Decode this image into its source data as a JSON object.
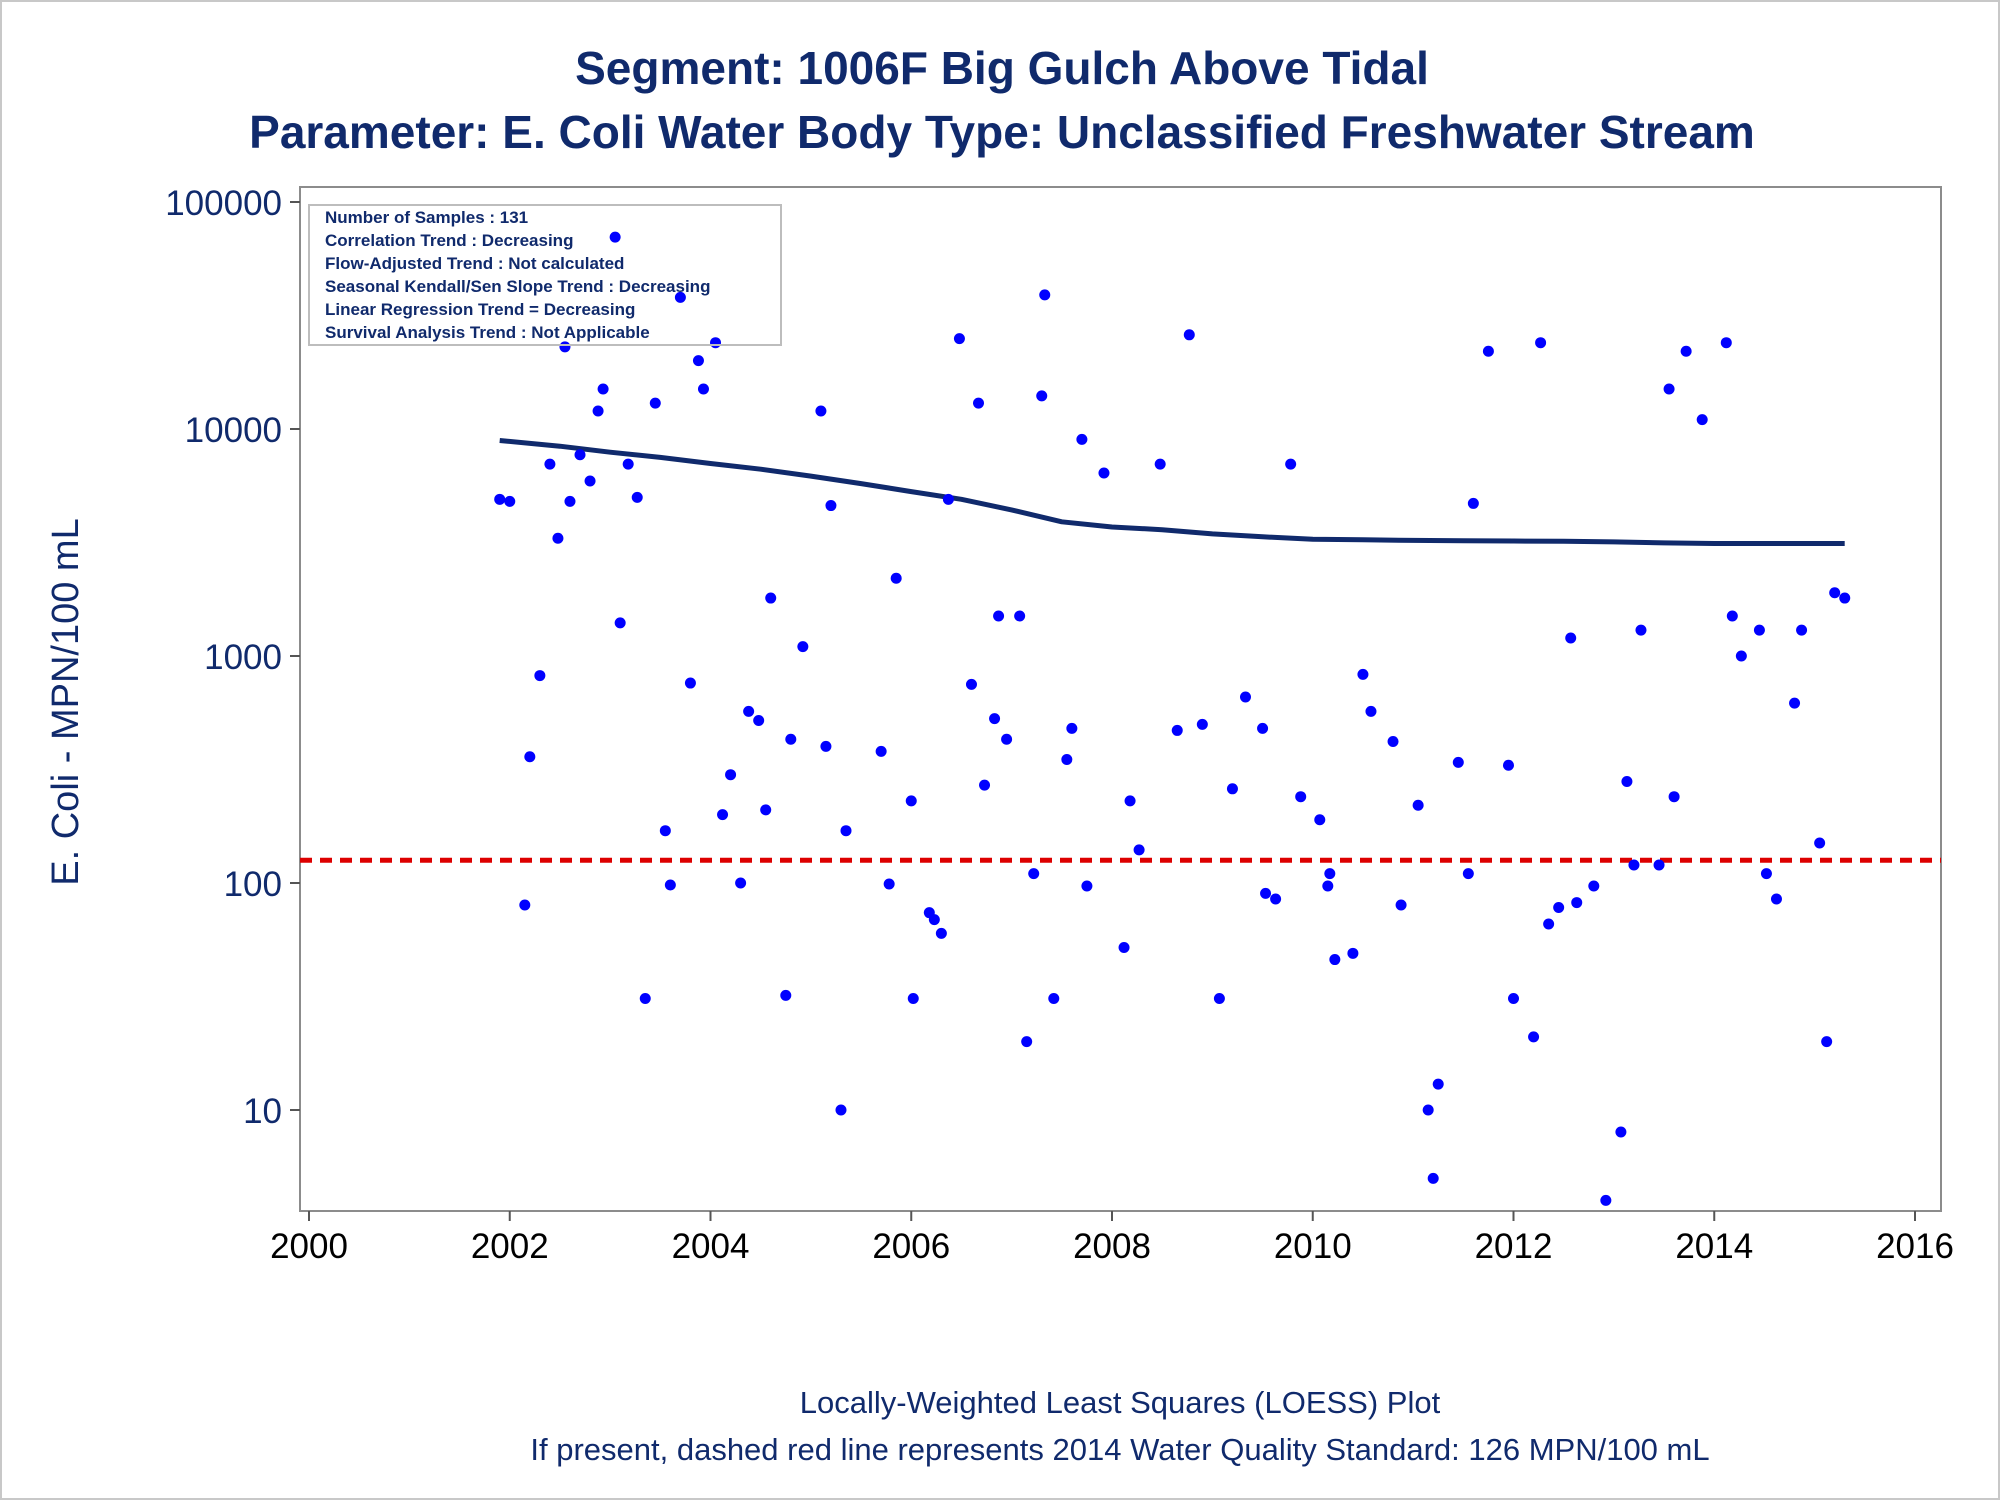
{
  "chart_data": {
    "type": "scatter",
    "title": "Segment: 1006F  Big Gulch Above Tidal",
    "subtitle": "Parameter: E. Coli   Water Body Type: Unclassified Freshwater Stream",
    "xlabel": "",
    "ylabel": "E. Coli - MPN/100 mL",
    "x_scale": "time",
    "y_scale": "log",
    "xlim": [
      2000.0,
      2016.1
    ],
    "ylim": [
      3.6,
      100000
    ],
    "x_ticks": [
      "2000",
      "2002",
      "2004",
      "2006",
      "2008",
      "2010",
      "2012",
      "2014",
      "2016"
    ],
    "y_ticks": [
      "10",
      "100",
      "1000",
      "10000",
      "100000"
    ],
    "grid": false,
    "stats_box": [
      "Number of Samples : 131",
      "Correlation Trend : Decreasing",
      "Flow-Adjusted Trend : Not calculated",
      "Seasonal Kendall/Sen Slope Trend : Decreasing",
      "Linear Regression Trend = Decreasing",
      "Survival Analysis Trend : Not Applicable"
    ],
    "footnotes": [
      "Locally-Weighted Least Squares (LOESS) Plot",
      "If present, dashed red line represents 2014 Water Quality Standard: 126 MPN/100 mL"
    ],
    "standard_value": 126,
    "colors": {
      "points": "#0000ff",
      "loess": "#102a6c",
      "standard": "#dd0000",
      "text": "#102a6c"
    },
    "samples": {
      "x": [
        2001.9,
        2002.0,
        2002.15,
        2002.2,
        2002.3,
        2002.4,
        2002.48,
        2002.55,
        2002.6,
        2002.7,
        2002.8,
        2002.88,
        2002.93,
        2003.05,
        2003.1,
        2003.18,
        2003.27,
        2003.35,
        2003.45,
        2003.55,
        2003.6,
        2003.7,
        2003.8,
        2003.88,
        2003.93,
        2004.05,
        2004.12,
        2004.2,
        2004.3,
        2004.38,
        2004.48,
        2004.55,
        2004.6,
        2004.75,
        2004.8,
        2004.92,
        2005.1,
        2005.15,
        2005.2,
        2005.3,
        2005.35,
        2005.7,
        2005.78,
        2005.85,
        2006.0,
        2006.02,
        2006.18,
        2006.23,
        2006.3,
        2006.37,
        2006.48,
        2006.6,
        2006.67,
        2006.73,
        2006.83,
        2006.87,
        2006.95,
        2007.08,
        2007.15,
        2007.22,
        2007.3,
        2007.33,
        2007.42,
        2007.55,
        2007.6,
        2007.7,
        2007.75,
        2007.92,
        2008.12,
        2008.18,
        2008.27,
        2008.48,
        2008.65,
        2008.77,
        2008.9,
        2009.07,
        2009.2,
        2009.33,
        2009.5,
        2009.53,
        2009.63,
        2009.78,
        2009.88,
        2010.07,
        2010.15,
        2010.17,
        2010.22,
        2010.4,
        2010.5,
        2010.58,
        2010.8,
        2010.88,
        2011.05,
        2011.15,
        2011.2,
        2011.25,
        2011.45,
        2011.55,
        2011.6,
        2011.75,
        2011.95,
        2012.0,
        2012.2,
        2012.27,
        2012.35,
        2012.45,
        2012.57,
        2012.63,
        2012.8,
        2012.92,
        2013.07,
        2013.13,
        2013.2,
        2013.27,
        2013.45,
        2013.55,
        2013.6,
        2013.72,
        2013.88,
        2014.12,
        2014.18,
        2014.27,
        2014.45,
        2014.52,
        2014.62,
        2014.8,
        2014.87,
        2015.05,
        2015.12,
        2015.2,
        2015.3
      ],
      "y": [
        4900,
        4800,
        80,
        360,
        820,
        7000,
        3300,
        23000,
        4800,
        7700,
        5900,
        12000,
        15000,
        70000,
        1400,
        7000,
        5000,
        31,
        13000,
        170,
        98,
        38000,
        760,
        20000,
        15000,
        24000,
        200,
        300,
        100,
        570,
        520,
        210,
        1800,
        32,
        430,
        1100,
        12000,
        400,
        4600,
        10,
        170,
        380,
        99,
        2200,
        230,
        31,
        74,
        69,
        60,
        4900,
        25000,
        750,
        13000,
        270,
        530,
        1500,
        430,
        1500,
        20,
        110,
        14000,
        39000,
        31,
        350,
        480,
        9000,
        97,
        6400,
        52,
        230,
        140,
        7000,
        470,
        26000,
        500,
        31,
        260,
        660,
        480,
        90,
        85,
        7000,
        240,
        190,
        97,
        110,
        46,
        49,
        830,
        570,
        420,
        80,
        220,
        10,
        5,
        13,
        340,
        110,
        4700,
        22000,
        330,
        31,
        21,
        24000,
        66,
        78,
        1200,
        82,
        97,
        4,
        8,
        280,
        120,
        1300,
        120,
        15000,
        240,
        22000,
        11000,
        24000,
        1500,
        1000,
        1300,
        110,
        85,
        620,
        1300,
        150,
        20,
        1900,
        1800
      ]
    },
    "loess": {
      "x": [
        2001.9,
        2002.5,
        2003.0,
        2003.5,
        2004.0,
        2004.5,
        2005.0,
        2005.5,
        2006.0,
        2006.5,
        2007.0,
        2007.5,
        2008.0,
        2008.5,
        2009.0,
        2009.5,
        2010.0,
        2010.5,
        2011.0,
        2011.5,
        2012.0,
        2012.5,
        2013.0,
        2013.5,
        2014.0,
        2014.5,
        2015.0,
        2015.3
      ],
      "y": [
        8900,
        8400,
        7900,
        7500,
        7050,
        6650,
        6200,
        5750,
        5300,
        4900,
        4400,
        3900,
        3700,
        3600,
        3450,
        3350,
        3270,
        3250,
        3230,
        3220,
        3210,
        3200,
        3180,
        3150,
        3130,
        3130,
        3130,
        3130
      ]
    }
  }
}
